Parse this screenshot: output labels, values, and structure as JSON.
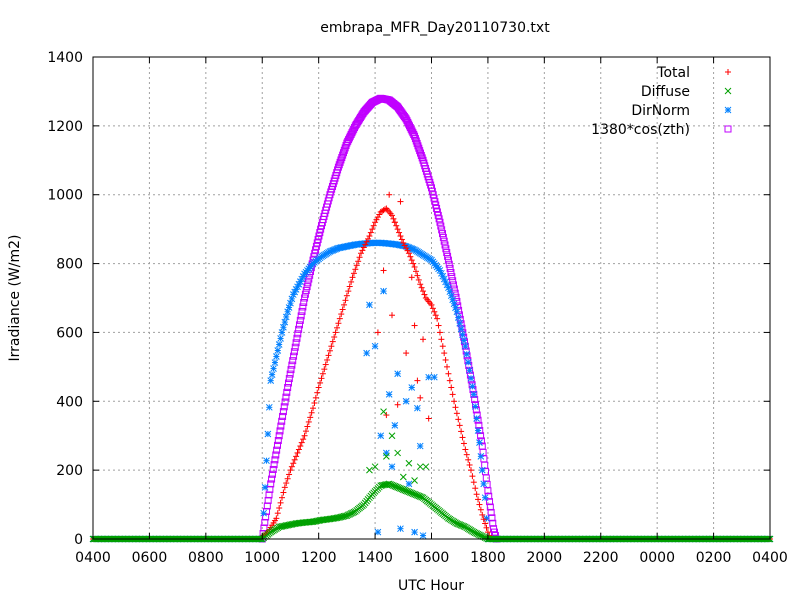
{
  "chart_data": {
    "type": "scatter",
    "title": "embrapa_MFR_Day20110730.txt",
    "xlabel": "UTC Hour",
    "ylabel": "Irradiance (W/m2)",
    "ylim": [
      0,
      1400
    ],
    "xlim": [
      0,
      24
    ],
    "x_tick_labels": [
      "0400",
      "0600",
      "0800",
      "1000",
      "1200",
      "1400",
      "1600",
      "1800",
      "2000",
      "2200",
      "0000",
      "0200",
      "0400"
    ],
    "y_ticks": [
      0,
      200,
      400,
      600,
      800,
      1000,
      1200,
      1400
    ],
    "grid": true,
    "legend_position": "top-right",
    "series": [
      {
        "name": "Total",
        "color": "#ff0000",
        "marker": "plus",
        "points": [
          [
            0,
            0
          ],
          [
            1,
            0
          ],
          [
            2,
            0
          ],
          [
            3,
            0
          ],
          [
            4,
            0
          ],
          [
            5,
            0
          ],
          [
            5.9,
            0
          ],
          [
            6.2,
            20
          ],
          [
            6.5,
            60
          ],
          [
            6.8,
            150
          ],
          [
            7.0,
            200
          ],
          [
            7.2,
            240
          ],
          [
            7.5,
            300
          ],
          [
            7.8,
            380
          ],
          [
            8.0,
            440
          ],
          [
            8.3,
            520
          ],
          [
            8.6,
            600
          ],
          [
            8.9,
            680
          ],
          [
            9.2,
            760
          ],
          [
            9.5,
            830
          ],
          [
            9.8,
            880
          ],
          [
            10.0,
            920
          ],
          [
            10.2,
            950
          ],
          [
            10.4,
            960
          ],
          [
            10.6,
            940
          ],
          [
            10.8,
            900
          ],
          [
            11.0,
            860
          ],
          [
            11.2,
            830
          ],
          [
            11.4,
            790
          ],
          [
            11.6,
            740
          ],
          [
            11.8,
            700
          ],
          [
            12.0,
            680
          ],
          [
            12.2,
            640
          ],
          [
            12.4,
            560
          ],
          [
            12.6,
            480
          ],
          [
            12.8,
            400
          ],
          [
            13.0,
            330
          ],
          [
            13.2,
            260
          ],
          [
            13.4,
            200
          ],
          [
            13.6,
            130
          ],
          [
            13.8,
            70
          ],
          [
            14.0,
            20
          ],
          [
            14.1,
            0
          ],
          [
            15,
            0
          ],
          [
            16,
            0
          ],
          [
            17,
            0
          ],
          [
            18,
            0
          ],
          [
            19,
            0
          ],
          [
            20,
            0
          ],
          [
            21,
            0
          ],
          [
            22,
            0
          ],
          [
            23,
            0
          ],
          [
            24,
            0
          ]
        ],
        "scatter_points": [
          [
            10.5,
            1000
          ],
          [
            10.7,
            920
          ],
          [
            10.9,
            980
          ],
          [
            10.3,
            780
          ],
          [
            10.1,
            600
          ],
          [
            10.6,
            650
          ],
          [
            11.1,
            540
          ],
          [
            11.3,
            760
          ],
          [
            11.5,
            460
          ],
          [
            10.8,
            390
          ],
          [
            11.7,
            580
          ],
          [
            11.9,
            350
          ],
          [
            10.4,
            360
          ],
          [
            11.6,
            410
          ],
          [
            11.4,
            620
          ]
        ]
      },
      {
        "name": "Diffuse",
        "color": "#00a000",
        "marker": "x",
        "points": [
          [
            0,
            0
          ],
          [
            1,
            0
          ],
          [
            2,
            0
          ],
          [
            3,
            0
          ],
          [
            4,
            0
          ],
          [
            5,
            0
          ],
          [
            6.0,
            0
          ],
          [
            6.3,
            20
          ],
          [
            6.6,
            35
          ],
          [
            6.9,
            40
          ],
          [
            7.2,
            45
          ],
          [
            7.5,
            48
          ],
          [
            7.8,
            50
          ],
          [
            8.1,
            55
          ],
          [
            8.4,
            58
          ],
          [
            8.7,
            62
          ],
          [
            9.0,
            68
          ],
          [
            9.3,
            80
          ],
          [
            9.6,
            100
          ],
          [
            9.9,
            130
          ],
          [
            10.2,
            155
          ],
          [
            10.5,
            160
          ],
          [
            10.8,
            150
          ],
          [
            11.1,
            140
          ],
          [
            11.4,
            130
          ],
          [
            11.7,
            120
          ],
          [
            12.0,
            100
          ],
          [
            12.3,
            80
          ],
          [
            12.6,
            60
          ],
          [
            12.9,
            45
          ],
          [
            13.2,
            35
          ],
          [
            13.5,
            20
          ],
          [
            13.8,
            8
          ],
          [
            14.0,
            0
          ],
          [
            15,
            0
          ],
          [
            16,
            0
          ],
          [
            17,
            0
          ],
          [
            18,
            0
          ],
          [
            19,
            0
          ],
          [
            20,
            0
          ],
          [
            21,
            0
          ],
          [
            22,
            0
          ],
          [
            23,
            0
          ],
          [
            24,
            0
          ]
        ],
        "scatter_points": [
          [
            10.3,
            370
          ],
          [
            10.6,
            300
          ],
          [
            10.0,
            210
          ],
          [
            10.8,
            250
          ],
          [
            11.2,
            220
          ],
          [
            11.6,
            210
          ],
          [
            11.0,
            180
          ],
          [
            9.8,
            200
          ],
          [
            10.4,
            240
          ],
          [
            11.4,
            170
          ],
          [
            11.8,
            210
          ]
        ]
      },
      {
        "name": "DirNorm",
        "color": "#0080ff",
        "marker": "star",
        "points": [
          [
            0,
            0
          ],
          [
            1,
            0
          ],
          [
            2,
            0
          ],
          [
            3,
            0
          ],
          [
            4,
            0
          ],
          [
            5,
            0
          ],
          [
            6.0,
            0
          ],
          [
            6.1,
            150
          ],
          [
            6.3,
            460
          ],
          [
            6.5,
            530
          ],
          [
            6.7,
            600
          ],
          [
            6.9,
            660
          ],
          [
            7.1,
            710
          ],
          [
            7.3,
            740
          ],
          [
            7.5,
            770
          ],
          [
            7.8,
            800
          ],
          [
            8.1,
            820
          ],
          [
            8.4,
            835
          ],
          [
            8.7,
            845
          ],
          [
            9.0,
            850
          ],
          [
            9.3,
            855
          ],
          [
            9.6,
            858
          ],
          [
            9.9,
            860
          ],
          [
            10.2,
            860
          ],
          [
            10.5,
            858
          ],
          [
            10.8,
            855
          ],
          [
            11.1,
            850
          ],
          [
            11.4,
            840
          ],
          [
            11.7,
            825
          ],
          [
            12.0,
            810
          ],
          [
            12.3,
            780
          ],
          [
            12.6,
            730
          ],
          [
            12.9,
            660
          ],
          [
            13.2,
            560
          ],
          [
            13.5,
            420
          ],
          [
            13.7,
            280
          ],
          [
            13.9,
            120
          ],
          [
            14.0,
            0
          ],
          [
            15,
            0
          ],
          [
            16,
            0
          ],
          [
            17,
            0
          ],
          [
            18,
            0
          ],
          [
            19,
            0
          ],
          [
            20,
            0
          ],
          [
            21,
            0
          ],
          [
            22,
            0
          ],
          [
            23,
            0
          ],
          [
            24,
            0
          ]
        ],
        "scatter_points": [
          [
            9.8,
            680
          ],
          [
            9.7,
            540
          ],
          [
            10.3,
            720
          ],
          [
            10.0,
            560
          ],
          [
            10.5,
            420
          ],
          [
            10.8,
            480
          ],
          [
            11.1,
            400
          ],
          [
            11.3,
            440
          ],
          [
            11.5,
            380
          ],
          [
            10.2,
            300
          ],
          [
            10.6,
            210
          ],
          [
            11.2,
            160
          ],
          [
            11.6,
            270
          ],
          [
            11.9,
            470
          ],
          [
            10.1,
            20
          ],
          [
            10.9,
            30
          ],
          [
            11.7,
            10
          ],
          [
            11.4,
            20
          ],
          [
            10.4,
            250
          ],
          [
            10.7,
            330
          ],
          [
            12.1,
            470
          ]
        ]
      },
      {
        "name": "1380*cos(zth)",
        "color": "#c000ff",
        "marker": "square",
        "points": [
          [
            6.0,
            0
          ],
          [
            6.15,
            80
          ],
          [
            6.3,
            160
          ],
          [
            6.6,
            300
          ],
          [
            6.9,
            440
          ],
          [
            7.2,
            570
          ],
          [
            7.5,
            700
          ],
          [
            7.8,
            810
          ],
          [
            8.1,
            910
          ],
          [
            8.4,
            1000
          ],
          [
            8.7,
            1080
          ],
          [
            9.0,
            1150
          ],
          [
            9.3,
            1200
          ],
          [
            9.6,
            1240
          ],
          [
            9.9,
            1268
          ],
          [
            10.2,
            1280
          ],
          [
            10.5,
            1275
          ],
          [
            10.8,
            1255
          ],
          [
            11.1,
            1220
          ],
          [
            11.4,
            1170
          ],
          [
            11.7,
            1100
          ],
          [
            12.0,
            1020
          ],
          [
            12.3,
            920
          ],
          [
            12.6,
            810
          ],
          [
            12.9,
            690
          ],
          [
            13.2,
            560
          ],
          [
            13.5,
            420
          ],
          [
            13.8,
            270
          ],
          [
            14.0,
            140
          ],
          [
            14.2,
            30
          ],
          [
            14.3,
            0
          ]
        ]
      }
    ]
  }
}
